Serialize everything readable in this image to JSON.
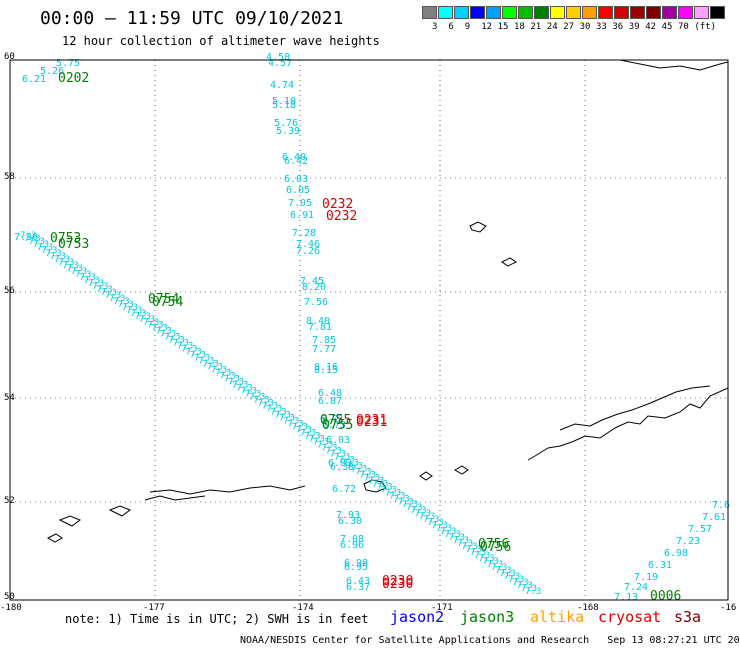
{
  "header": {
    "title": "00:00 – 11:59 UTC 09/10/2021",
    "subtitle": "12 hour collection of altimeter wave heights"
  },
  "legend": {
    "colors": [
      "#808080",
      "#00ffff",
      "#00d0ff",
      "#0000ff",
      "#00a0ff",
      "#00ff00",
      "#00c000",
      "#008000",
      "#ffff00",
      "#ffd000",
      "#ffa000",
      "#ff0000",
      "#d00000",
      "#a00000",
      "#800000",
      "#a000a0",
      "#ff00ff",
      "#ffa0ff",
      "#000000"
    ],
    "labels": [
      "3",
      "6",
      "9",
      "12",
      "15",
      "18",
      "21",
      "24",
      "27",
      "30",
      "33",
      "36",
      "39",
      "42",
      "45",
      "70",
      "(ft)"
    ]
  },
  "axes": {
    "lat_labels": [
      "60",
      "58",
      "56",
      "54",
      "52",
      "50"
    ],
    "lon_labels": [
      "-180",
      "-177",
      "-174",
      "-171",
      "-168",
      "-16"
    ]
  },
  "tracks": {
    "north_south": {
      "color": "#00c8e0",
      "values": [
        "4.50",
        "4.57",
        "4.74",
        "5.10",
        "5.18",
        "5.76",
        "5.39",
        "6.40",
        "6.42",
        "6.03",
        "6.05",
        "7.05",
        "6.91",
        "7.28",
        "7.46",
        "7.26",
        "7.45",
        "8.20",
        "7.56",
        "8.40",
        "7.81",
        "7.85",
        "7.77",
        "8.16",
        "8.15",
        "6.48",
        "6.87",
        "6.71",
        "6.73",
        "6.03",
        "6.83",
        "6.38",
        "6.72",
        "7.93",
        "6.30",
        "7.08",
        "6.96",
        "6.98",
        "6.95",
        "6.43",
        "6.37"
      ]
    },
    "diagonal": {
      "color": "#00c8e0",
      "start_label": "7.36"
    },
    "top_left": {
      "values": [
        "5.75",
        "5.26",
        "6.21"
      ]
    },
    "bottom_right": {
      "color": "#00c8e0",
      "values": [
        "7.13",
        "7.24",
        "7.19",
        "6.31",
        "6.98",
        "7.23",
        "7.57",
        "7.61",
        "7.6"
      ]
    }
  },
  "time_labels": [
    {
      "text": "0202",
      "color": "#008000"
    },
    {
      "text": "0753",
      "color": "#008000"
    },
    {
      "text": "0753",
      "color": "#008000"
    },
    {
      "text": "0754",
      "color": "#008000"
    },
    {
      "text": "0754",
      "color": "#008000"
    },
    {
      "text": "0755",
      "color": "#008000"
    },
    {
      "text": "0755",
      "color": "#008000"
    },
    {
      "text": "0756",
      "color": "#008000"
    },
    {
      "text": "0756",
      "color": "#008000"
    },
    {
      "text": "0006",
      "color": "#008000"
    },
    {
      "text": "0232",
      "color": "#e00000"
    },
    {
      "text": "0232",
      "color": "#e00000"
    },
    {
      "text": "0231",
      "color": "#e00000"
    },
    {
      "text": "0231",
      "color": "#e00000"
    },
    {
      "text": "0230",
      "color": "#e00000"
    },
    {
      "text": "0230",
      "color": "#e00000"
    }
  ],
  "footer": {
    "note": "note: 1) Time is in UTC; 2) SWH is in feet",
    "satellites": [
      {
        "name": "jason2",
        "color": "#0000ff"
      },
      {
        "name": "jason3",
        "color": "#008000"
      },
      {
        "name": "altika",
        "color": "#ffa000"
      },
      {
        "name": "cryosat",
        "color": "#e00000"
      },
      {
        "name": "s3a",
        "color": "#800000"
      }
    ],
    "credit": "NOAA/NESDIS Center for Satellite Applications and Research   Sep 13 08:27:21 UTC 2021"
  }
}
